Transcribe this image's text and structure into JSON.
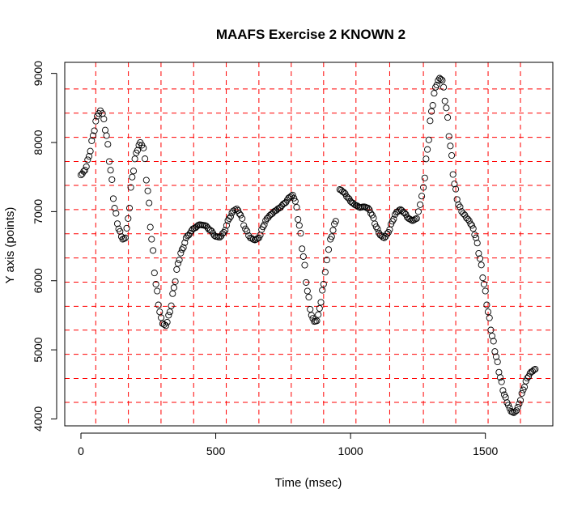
{
  "chart_data": {
    "type": "scatter",
    "title": "MAAFS Exercise 2 KNOWN 2",
    "xlabel": "Time (msec)",
    "ylabel": "Y axis (points)",
    "xlim": [
      -60,
      1750
    ],
    "ylim": [
      3900,
      9160
    ],
    "x_ticks": [
      0,
      500,
      1000,
      1500
    ],
    "x_tick_labels": [
      "0",
      "500",
      "1000",
      "1500"
    ],
    "y_ticks": [
      4000,
      5000,
      6000,
      7000,
      8000,
      9000
    ],
    "y_tick_labels": [
      "4000",
      "5000",
      "6000",
      "7000",
      "8000",
      "9000"
    ],
    "grid": {
      "color": "#ff0000",
      "style": "dashed",
      "vertical_x": [
        55,
        176,
        297,
        418,
        539,
        660,
        780,
        900,
        1020,
        1145,
        1270,
        1390,
        1510,
        1630
      ],
      "horizontal_y": [
        4240,
        4585,
        4935,
        5285,
        5630,
        5980,
        6330,
        6680,
        7030,
        7380,
        7725,
        8075,
        8425,
        8775
      ]
    },
    "marker": "open-circle",
    "series_anchors": [
      [
        0,
        7530
      ],
      [
        15,
        7600
      ],
      [
        30,
        7800
      ],
      [
        45,
        8100
      ],
      [
        60,
        8380
      ],
      [
        72,
        8460
      ],
      [
        80,
        8420
      ],
      [
        95,
        8100
      ],
      [
        110,
        7600
      ],
      [
        125,
        7050
      ],
      [
        140,
        6750
      ],
      [
        155,
        6600
      ],
      [
        165,
        6620
      ],
      [
        175,
        6900
      ],
      [
        190,
        7500
      ],
      [
        205,
        7850
      ],
      [
        220,
        8000
      ],
      [
        232,
        7920
      ],
      [
        248,
        7300
      ],
      [
        262,
        6600
      ],
      [
        278,
        5950
      ],
      [
        292,
        5550
      ],
      [
        303,
        5380
      ],
      [
        315,
        5350
      ],
      [
        330,
        5550
      ],
      [
        345,
        5900
      ],
      [
        360,
        6250
      ],
      [
        375,
        6450
      ],
      [
        395,
        6650
      ],
      [
        420,
        6760
      ],
      [
        440,
        6810
      ],
      [
        460,
        6800
      ],
      [
        480,
        6730
      ],
      [
        500,
        6640
      ],
      [
        515,
        6630
      ],
      [
        530,
        6700
      ],
      [
        550,
        6900
      ],
      [
        565,
        7010
      ],
      [
        578,
        7040
      ],
      [
        592,
        6950
      ],
      [
        610,
        6750
      ],
      [
        628,
        6620
      ],
      [
        645,
        6590
      ],
      [
        660,
        6620
      ],
      [
        675,
        6780
      ],
      [
        690,
        6900
      ],
      [
        705,
        6960
      ],
      [
        720,
        7010
      ],
      [
        735,
        7050
      ],
      [
        755,
        7120
      ],
      [
        775,
        7210
      ],
      [
        785,
        7240
      ],
      [
        795,
        7150
      ],
      [
        810,
        6800
      ],
      [
        825,
        6350
      ],
      [
        840,
        5850
      ],
      [
        855,
        5500
      ],
      [
        865,
        5410
      ],
      [
        875,
        5420
      ],
      [
        885,
        5600
      ],
      [
        900,
        5950
      ],
      [
        912,
        6300
      ],
      [
        925,
        6600
      ],
      [
        945,
        6860
      ],
      [
        960,
        7320
      ],
      [
        975,
        7280
      ],
      [
        990,
        7200
      ],
      [
        1005,
        7130
      ],
      [
        1020,
        7090
      ],
      [
        1035,
        7060
      ],
      [
        1050,
        7070
      ],
      [
        1065,
        7050
      ],
      [
        1080,
        6950
      ],
      [
        1095,
        6780
      ],
      [
        1110,
        6660
      ],
      [
        1125,
        6620
      ],
      [
        1140,
        6700
      ],
      [
        1155,
        6860
      ],
      [
        1170,
        6990
      ],
      [
        1185,
        7030
      ],
      [
        1200,
        6980
      ],
      [
        1215,
        6900
      ],
      [
        1230,
        6870
      ],
      [
        1245,
        6900
      ],
      [
        1258,
        7100
      ],
      [
        1270,
        7350
      ],
      [
        1285,
        7900
      ],
      [
        1300,
        8450
      ],
      [
        1315,
        8800
      ],
      [
        1330,
        8930
      ],
      [
        1340,
        8900
      ],
      [
        1355,
        8500
      ],
      [
        1370,
        7950
      ],
      [
        1385,
        7400
      ],
      [
        1400,
        7100
      ],
      [
        1418,
        6970
      ],
      [
        1435,
        6890
      ],
      [
        1450,
        6800
      ],
      [
        1465,
        6620
      ],
      [
        1480,
        6320
      ],
      [
        1495,
        5950
      ],
      [
        1510,
        5550
      ],
      [
        1525,
        5200
      ],
      [
        1540,
        4900
      ],
      [
        1555,
        4600
      ],
      [
        1570,
        4350
      ],
      [
        1585,
        4200
      ],
      [
        1595,
        4110
      ],
      [
        1605,
        4090
      ],
      [
        1615,
        4120
      ],
      [
        1625,
        4220
      ],
      [
        1640,
        4420
      ],
      [
        1655,
        4590
      ],
      [
        1670,
        4680
      ],
      [
        1685,
        4720
      ]
    ],
    "series_breaks_after_x": [
      945
    ]
  }
}
